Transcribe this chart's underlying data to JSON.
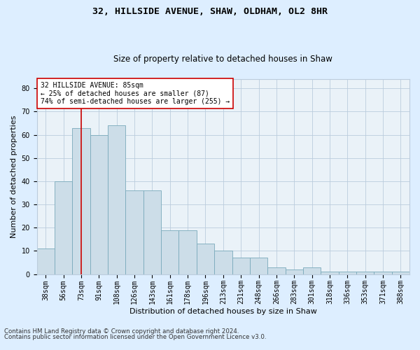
{
  "title1": "32, HILLSIDE AVENUE, SHAW, OLDHAM, OL2 8HR",
  "title2": "Size of property relative to detached houses in Shaw",
  "xlabel": "Distribution of detached houses by size in Shaw",
  "ylabel": "Number of detached properties",
  "categories": [
    "38sqm",
    "56sqm",
    "73sqm",
    "91sqm",
    "108sqm",
    "126sqm",
    "143sqm",
    "161sqm",
    "178sqm",
    "196sqm",
    "213sqm",
    "231sqm",
    "248sqm",
    "266sqm",
    "283sqm",
    "301sqm",
    "318sqm",
    "336sqm",
    "353sqm",
    "371sqm",
    "388sqm"
  ],
  "values": [
    11,
    40,
    63,
    60,
    64,
    36,
    36,
    19,
    19,
    13,
    10,
    7,
    7,
    3,
    2,
    3,
    1,
    1,
    1,
    1,
    1
  ],
  "bar_color": "#ccdde8",
  "bar_edge_color": "#7aaabb",
  "vline_x": 2.0,
  "vline_color": "#cc0000",
  "annotation_text": "32 HILLSIDE AVENUE: 85sqm\n← 25% of detached houses are smaller (87)\n74% of semi-detached houses are larger (255) →",
  "annotation_box_color": "#ffffff",
  "annotation_box_edge": "#cc0000",
  "ylim": [
    0,
    84
  ],
  "yticks": [
    0,
    10,
    20,
    30,
    40,
    50,
    60,
    70,
    80
  ],
  "grid_color": "#bbccdd",
  "background_color": "#ddeeff",
  "plot_bg_color": "#eaf2f8",
  "footer1": "Contains HM Land Registry data © Crown copyright and database right 2024.",
  "footer2": "Contains public sector information licensed under the Open Government Licence v3.0.",
  "title1_fontsize": 9.5,
  "title2_fontsize": 8.5,
  "xlabel_fontsize": 8,
  "ylabel_fontsize": 8,
  "ann_fontsize": 7,
  "tick_fontsize": 7,
  "footer_fontsize": 6.2
}
